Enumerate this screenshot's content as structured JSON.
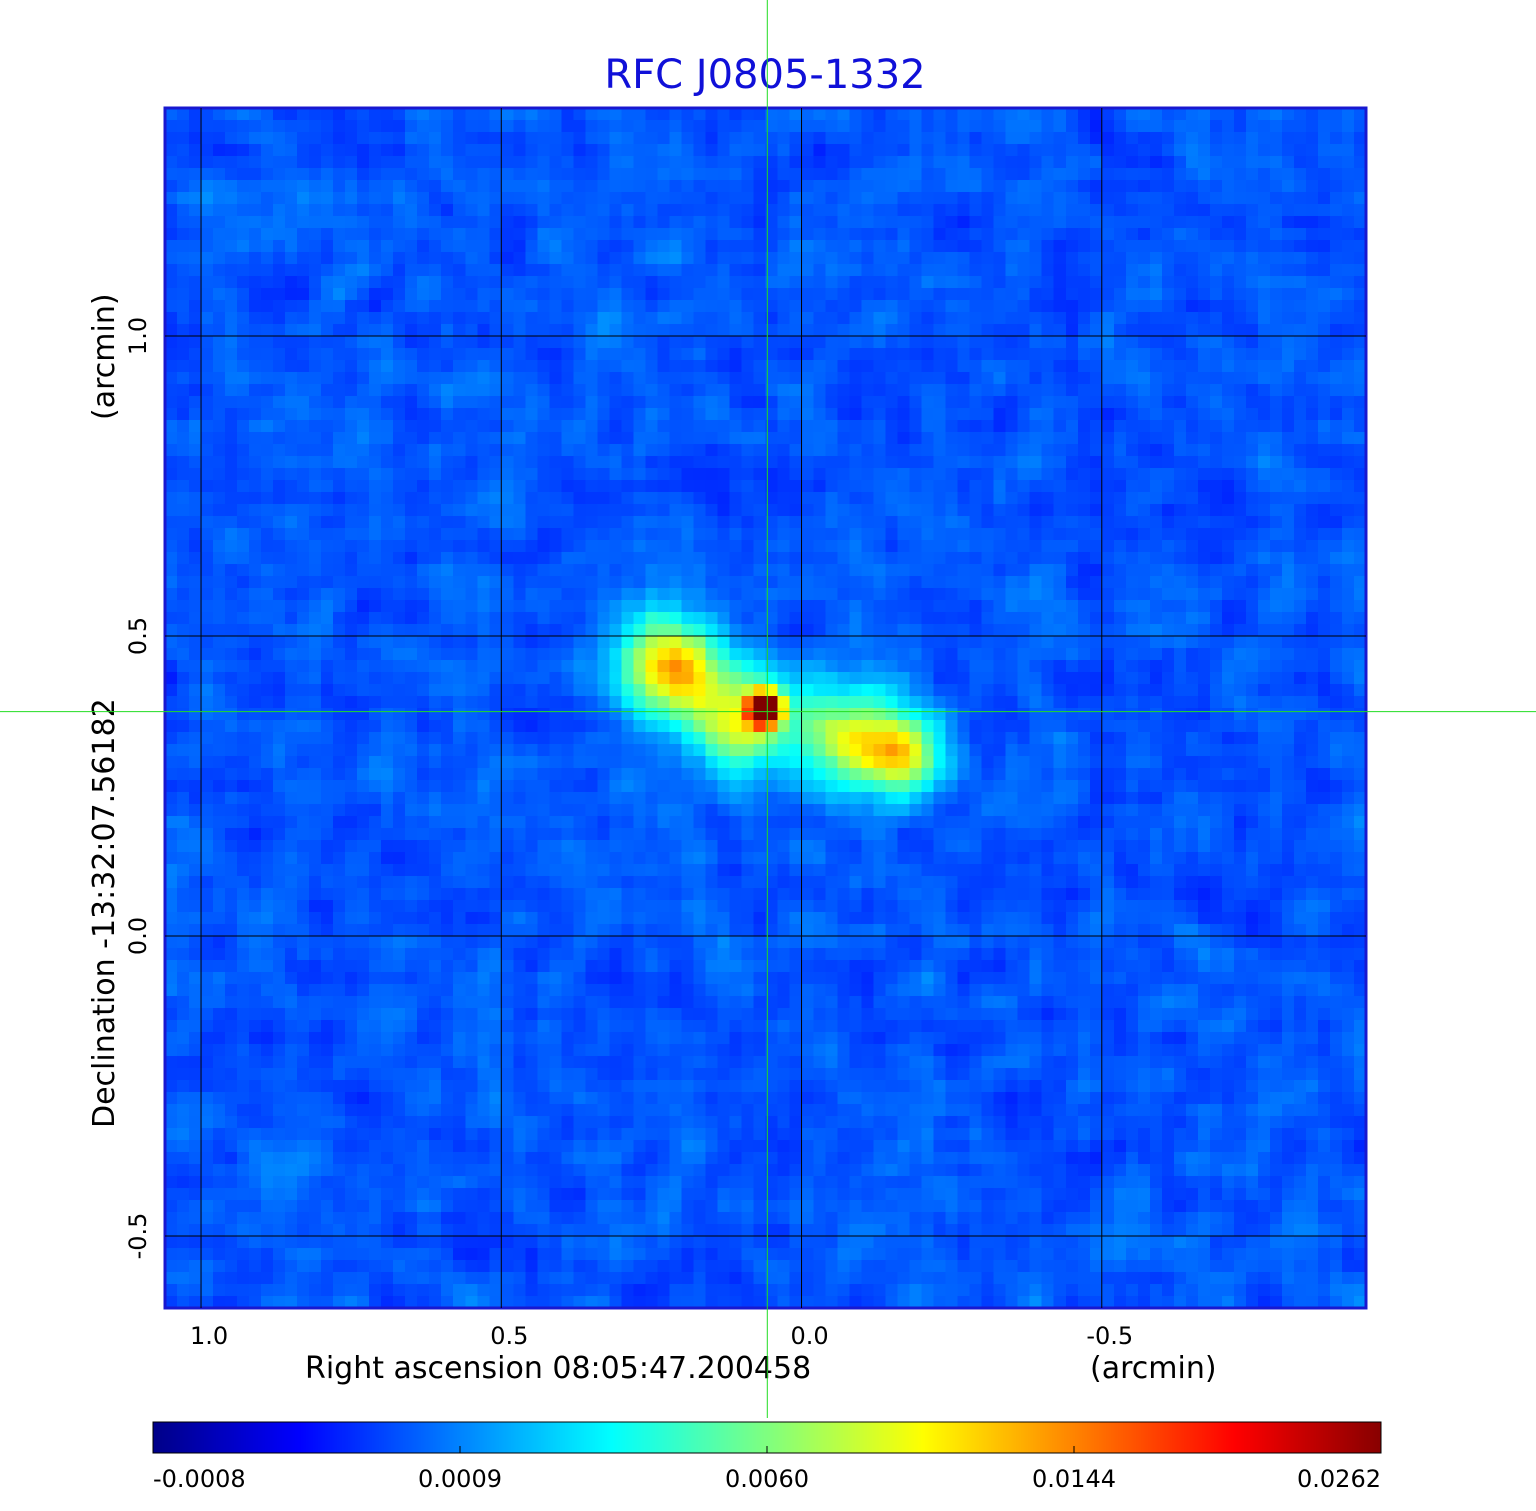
{
  "chart_data": {
    "type": "heatmap",
    "title": "RFC J0805-1332",
    "xlabel": "Right ascension  08:05:47.200458",
    "xlabel_unit": "(arcmin)",
    "ylabel": "Declination  -13:32:07.56182",
    "ylabel_unit": "(arcmin)",
    "x_ticks": [
      "1.0",
      "0.5",
      "0.0",
      "-0.5"
    ],
    "x_tick_values": [
      1.0,
      0.5,
      0.0,
      -0.5
    ],
    "y_ticks": [
      "1.0",
      "0.5",
      "0.0",
      "-0.5"
    ],
    "y_tick_values": [
      1.0,
      0.5,
      0.0,
      -0.5
    ],
    "xlim": [
      1.06,
      -0.94
    ],
    "ylim": [
      -0.62,
      1.38
    ],
    "x_direction": "decreasing to the right",
    "grid": true,
    "crosshair": {
      "x": 0.057,
      "y": 0.374,
      "color": "#22dd22"
    },
    "colormap": "jet",
    "colorbar": {
      "placement": "bottom",
      "ticks": [
        "-0.0008",
        "0.0009",
        "0.0060",
        "0.0144",
        "0.0262"
      ]
    },
    "features": [
      {
        "name": "core",
        "x": 0.06,
        "y": 0.38,
        "peak": 0.0262
      },
      {
        "name": "east lobe",
        "x": 0.22,
        "y": 0.45,
        "peak": 0.009
      },
      {
        "name": "west lobe",
        "x": -0.17,
        "y": 0.3,
        "peak": 0.0045
      }
    ]
  }
}
